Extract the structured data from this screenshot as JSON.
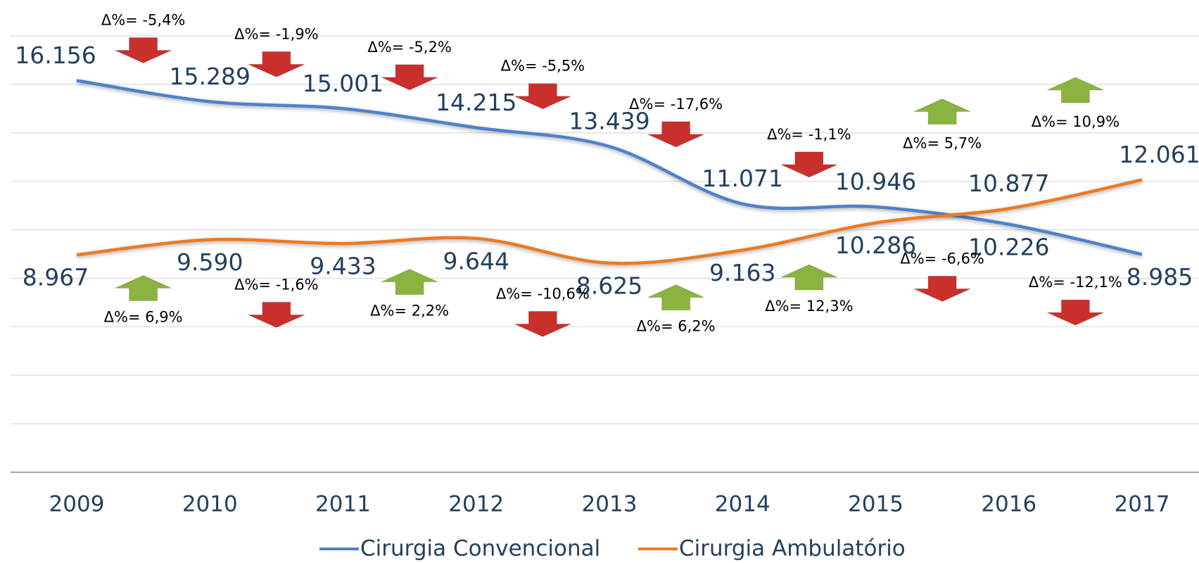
{
  "chart_data": {
    "type": "line",
    "categories": [
      "2009",
      "2010",
      "2011",
      "2012",
      "2013",
      "2014",
      "2015",
      "2016",
      "2017"
    ],
    "series": [
      {
        "name": "Cirurgia Convencional",
        "color": "#4f81c7",
        "values": [
          16156,
          15289,
          15001,
          14215,
          13439,
          11071,
          10946,
          10226,
          8985
        ],
        "value_labels": [
          "16.156",
          "15.289",
          "15.001",
          "14.215",
          "13.439",
          "11.071",
          "10.946",
          "10.226",
          "8.985"
        ],
        "changes": [
          "Δ%= -5,4%",
          "Δ%= -1,9%",
          "Δ%= -5,2%",
          "Δ%= -5,5%",
          "Δ%= -17,6%",
          "Δ%= -1,1%",
          "Δ%= -6,6%",
          "Δ%= -12,1%"
        ]
      },
      {
        "name": "Cirurgia Ambulatório",
        "color": "#ec7a22",
        "values": [
          8967,
          9590,
          9433,
          9644,
          8625,
          9163,
          10286,
          10877,
          12061
        ],
        "value_labels": [
          "8.967",
          "9.590",
          "9.433",
          "9.644",
          "8.625",
          "9.163",
          "10.286",
          "10.877",
          "12.061"
        ],
        "changes": [
          "Δ%= 6,9%",
          "Δ%= -1,6%",
          "Δ%= 2,2%",
          "Δ%= -10,6%",
          "Δ%= 6,2%",
          "Δ%= 12,3%",
          "Δ%= 5,7%",
          "Δ%= 10,9%"
        ]
      }
    ],
    "ylim": [
      0,
      18000
    ],
    "yticks": [
      0,
      2000,
      4000,
      6000,
      8000,
      10000,
      12000,
      14000,
      16000,
      18000
    ],
    "grid": true,
    "legend": "bottom",
    "arrow_colors": {
      "up": "#8ab43f",
      "down": "#c9302c"
    }
  }
}
